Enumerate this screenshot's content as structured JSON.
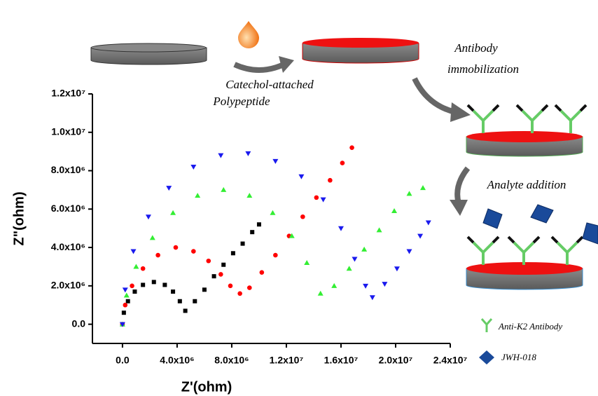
{
  "chart_data": {
    "type": "scatter",
    "x_label": "Z'(ohm)",
    "y_label": "Z\"(ohm)",
    "xlim": [
      -2200000,
      24000000
    ],
    "ylim": [
      -1000000,
      12000000
    ],
    "xticks": [
      {
        "value": 0,
        "label": "0.0"
      },
      {
        "value": 4000000,
        "label": "4.0x10⁶"
      },
      {
        "value": 8000000,
        "label": "8.0x10⁶"
      },
      {
        "value": 12000000,
        "label": "1.2x10⁷"
      },
      {
        "value": 16000000,
        "label": "1.6x10⁷"
      },
      {
        "value": 20000000,
        "label": "2.0x10⁷"
      },
      {
        "value": 24000000,
        "label": "2.4x10⁷"
      }
    ],
    "yticks": [
      {
        "value": 0,
        "label": "0.0"
      },
      {
        "value": 2000000,
        "label": "2.0x10⁶"
      },
      {
        "value": 4000000,
        "label": "4.0x10⁶"
      },
      {
        "value": 6000000,
        "label": "6.0x10⁶"
      },
      {
        "value": 8000000,
        "label": "8.0x10⁶"
      },
      {
        "value": 10000000,
        "label": "1.0x10⁷"
      },
      {
        "value": 12000000,
        "label": "1.2x10⁷"
      }
    ],
    "series": [
      {
        "color": "#000000",
        "marker": "square",
        "x": [
          0,
          100000,
          400000,
          900000,
          1500000,
          2300000,
          3100000,
          3700000,
          4200000,
          4600000,
          5300000,
          6000000,
          6700000,
          7400000,
          8100000,
          8800000,
          9500000,
          10000000
        ],
        "values": [
          0,
          600000,
          1200000,
          1700000,
          2050000,
          2200000,
          2050000,
          1700000,
          1200000,
          700000,
          1200000,
          1800000,
          2500000,
          3100000,
          3700000,
          4200000,
          4800000,
          5200000
        ]
      },
      {
        "color": "#ff0000",
        "marker": "circle",
        "x": [
          0,
          200000,
          700000,
          1500000,
          2600000,
          3900000,
          5200000,
          6300000,
          7200000,
          7900000,
          8600000,
          9300000,
          10200000,
          11200000,
          12200000,
          13200000,
          14200000,
          15200000,
          16100000,
          16800000
        ],
        "values": [
          0,
          1000000,
          2000000,
          2900000,
          3600000,
          4000000,
          3800000,
          3300000,
          2600000,
          2000000,
          1600000,
          1900000,
          2700000,
          3600000,
          4600000,
          5600000,
          6600000,
          7500000,
          8400000,
          9200000
        ]
      },
      {
        "color": "#33ee33",
        "marker": "triangle",
        "x": [
          0,
          300000,
          1000000,
          2200000,
          3700000,
          5500000,
          7400000,
          9300000,
          11000000,
          12400000,
          13500000,
          14500000,
          15500000,
          16600000,
          17700000,
          18800000,
          19900000,
          21000000,
          22000000
        ],
        "values": [
          0,
          1500000,
          3000000,
          4500000,
          5800000,
          6700000,
          7000000,
          6700000,
          5800000,
          4600000,
          3200000,
          1600000,
          2000000,
          2900000,
          3900000,
          4900000,
          5900000,
          6800000,
          7100000
        ]
      },
      {
        "color": "#1a1aee",
        "marker": "triangle-down",
        "x": [
          0,
          200000,
          800000,
          1900000,
          3400000,
          5200000,
          7200000,
          9200000,
          11200000,
          13100000,
          14700000,
          16000000,
          17000000,
          17800000,
          18300000,
          19200000,
          20100000,
          21000000,
          21800000,
          22400000
        ],
        "values": [
          0,
          1800000,
          3800000,
          5600000,
          7100000,
          8200000,
          8800000,
          8900000,
          8500000,
          7700000,
          6500000,
          5000000,
          3400000,
          2000000,
          1400000,
          2100000,
          2900000,
          3800000,
          4600000,
          5300000
        ]
      }
    ]
  },
  "schematic": {
    "step1": [
      "Catechol-attached",
      "Polypeptide"
    ],
    "step2": [
      "Antibody",
      "immobilization"
    ],
    "step3": "Analyte addition",
    "legend": [
      "Anti-K2 Antibody",
      "JWH-018"
    ]
  }
}
